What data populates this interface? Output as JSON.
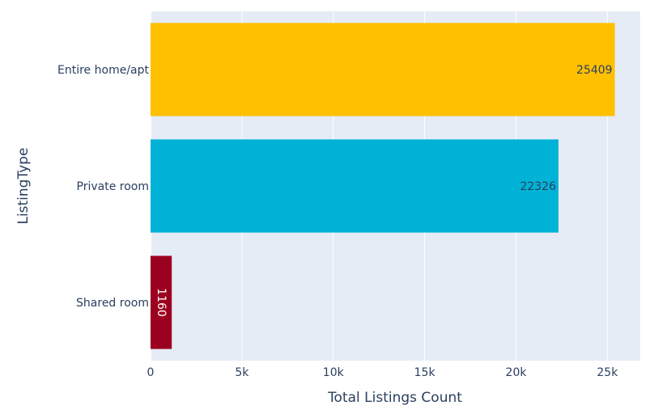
{
  "chart_data": {
    "type": "bar",
    "orientation": "horizontal",
    "title": "",
    "xlabel": "Total Listings Count",
    "ylabel": "ListingType",
    "categories": [
      "Entire home/apt",
      "Private room",
      "Shared room"
    ],
    "values": [
      25409,
      22326,
      1160
    ],
    "colors": [
      "#FFC000",
      "#00B2D6",
      "#9C0020"
    ],
    "xlim": [
      0,
      26800
    ],
    "xticks": [
      0,
      5000,
      10000,
      15000,
      20000,
      25000
    ],
    "xtick_labels": [
      "0",
      "5k",
      "10k",
      "15k",
      "20k",
      "25k"
    ],
    "grid": true,
    "legend": "none",
    "background": "#E5ECF6"
  }
}
